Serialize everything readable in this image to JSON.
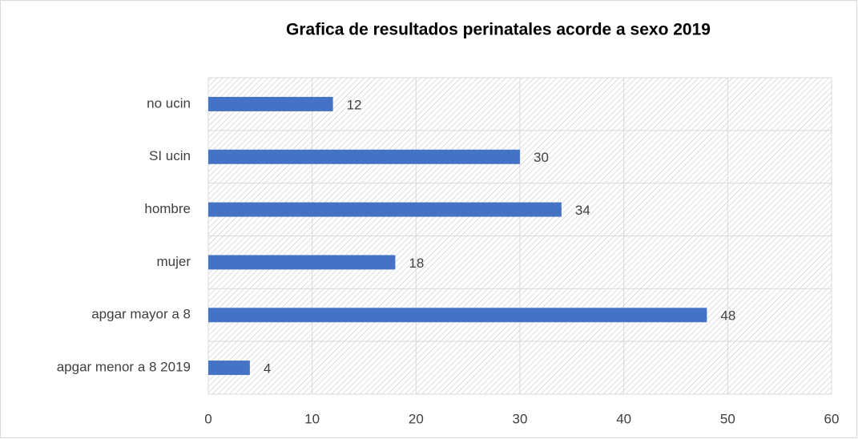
{
  "chart_data": {
    "type": "bar",
    "orientation": "horizontal",
    "title": "Grafica de resultados perinatales acorde a sexo 2019",
    "categories": [
      "no ucin",
      "SI ucin",
      "hombre",
      "mujer",
      "apgar mayor a 8",
      "apgar menor a 8 2019"
    ],
    "values": [
      12,
      30,
      34,
      18,
      48,
      4
    ],
    "color": "#4472c4",
    "xlim": [
      0,
      60
    ],
    "xticks": [
      0,
      10,
      20,
      30,
      40,
      50,
      60
    ],
    "grid": true
  }
}
